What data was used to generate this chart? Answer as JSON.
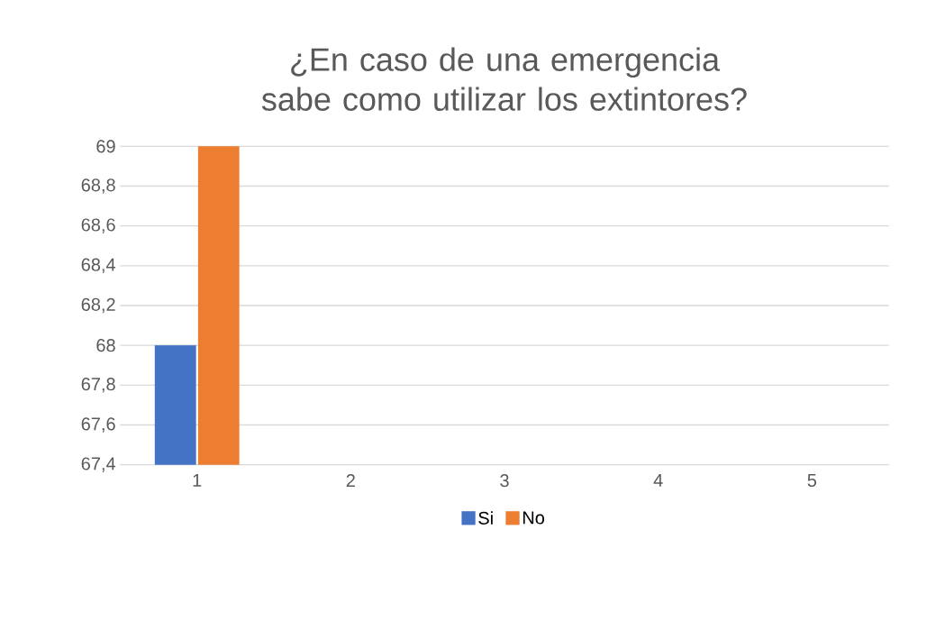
{
  "chart_data": {
    "type": "bar",
    "title": "¿En caso de una emergencia sabe como utilizar los extintores?",
    "categories": [
      "1",
      "2",
      "3",
      "4",
      "5"
    ],
    "series": [
      {
        "name": "Si",
        "color": "#4472c4",
        "values": [
          68,
          null,
          null,
          null,
          null
        ]
      },
      {
        "name": "No",
        "color": "#ed7d31",
        "values": [
          69,
          null,
          null,
          null,
          null
        ]
      }
    ],
    "ylim": [
      67.4,
      69
    ],
    "yticks": [
      {
        "value": 67.4,
        "label": "67,4"
      },
      {
        "value": 67.6,
        "label": "67,6"
      },
      {
        "value": 67.8,
        "label": "67,8"
      },
      68,
      {
        "value": 68.2,
        "label": "68,2"
      },
      {
        "value": 68.4,
        "label": "68,4"
      },
      {
        "value": 68.6,
        "label": "68,6"
      },
      {
        "value": 68.8,
        "label": "68,8"
      },
      69
    ],
    "grid": "y",
    "legend": "bottom"
  }
}
